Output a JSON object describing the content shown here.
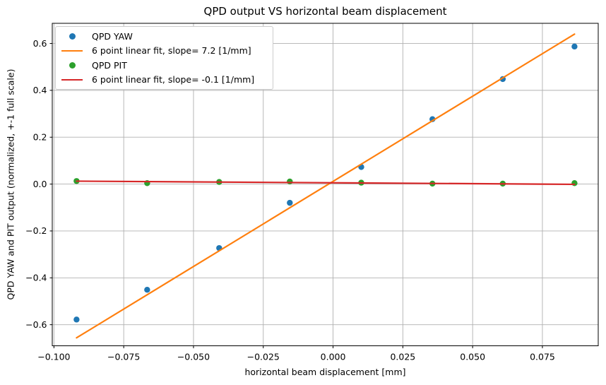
{
  "chart_data": {
    "type": "scatter",
    "title": "QPD output VS horizontal beam displacement",
    "xlabel": "horizontal beam displacement [mm]",
    "ylabel": "QPD YAW and PIT output (normalized, +-1 full scale)",
    "xlim": [
      -0.1006,
      0.095
    ],
    "ylim": [
      -0.69,
      0.686
    ],
    "grid": true,
    "legend_position": "upper left",
    "x_ticks": {
      "values": [
        -0.1,
        -0.075,
        -0.05,
        -0.025,
        0.0,
        0.025,
        0.05,
        0.075
      ],
      "labels": [
        "−0.100",
        "−0.075",
        "−0.050",
        "−0.025",
        "0.000",
        "0.025",
        "0.050",
        "0.075"
      ]
    },
    "y_ticks": {
      "values": [
        -0.6,
        -0.4,
        -0.2,
        0.0,
        0.2,
        0.4,
        0.6
      ],
      "labels": [
        "−0.6",
        "−0.4",
        "−0.2",
        "0.0",
        "0.2",
        "0.4",
        "0.6"
      ]
    },
    "x": [
      -0.0919,
      -0.0666,
      -0.0408,
      -0.0155,
      0.0101,
      0.0356,
      0.0608,
      0.0865
    ],
    "series": [
      {
        "id": "qpd-yaw",
        "name": "QPD YAW",
        "kind": "scatter",
        "color": "#1f77b4",
        "y": [
          -0.578,
          -0.451,
          -0.273,
          -0.08,
          0.073,
          0.277,
          0.448,
          0.587
        ]
      },
      {
        "id": "yaw-fit",
        "name": "6 point linear fit, slope= 7.2 [1/mm]",
        "kind": "line",
        "color": "#ff7f0e",
        "slope": 7.2,
        "x": [
          -0.0919,
          0.0865
        ],
        "y": [
          -0.656,
          0.64
        ]
      },
      {
        "id": "qpd-pit",
        "name": "QPD PIT",
        "kind": "scatter",
        "color": "#2ca02c",
        "y": [
          0.013,
          0.004,
          0.009,
          0.011,
          0.006,
          0.002,
          0.002,
          0.004
        ]
      },
      {
        "id": "pit-fit",
        "name": "6 point linear fit, slope= -0.1 [1/mm]",
        "kind": "line",
        "color": "#d62728",
        "slope": -0.1,
        "x": [
          -0.0919,
          0.0865
        ],
        "y": [
          0.0125,
          -0.001
        ]
      }
    ],
    "colors": {
      "grid": "#b0b0b0",
      "axis": "#000000",
      "background": "#ffffff"
    }
  }
}
